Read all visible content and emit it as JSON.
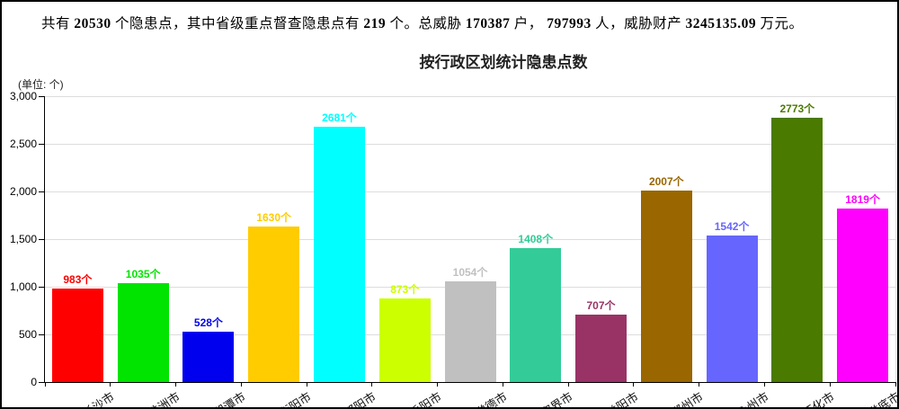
{
  "summary": {
    "segments": [
      {
        "t": "共有 ",
        "b": 0
      },
      {
        "t": "20530",
        "b": 1
      },
      {
        "t": " 个隐患点，其中省级重点督查隐患点有 ",
        "b": 0
      },
      {
        "t": "219",
        "b": 1
      },
      {
        "t": " 个。总威胁 ",
        "b": 0
      },
      {
        "t": "170387",
        "b": 1
      },
      {
        "t": " 户， ",
        "b": 0
      },
      {
        "t": "797993",
        "b": 1
      },
      {
        "t": " 人，威胁财产 ",
        "b": 0
      },
      {
        "t": "3245135.09",
        "b": 1
      },
      {
        "t": " 万元。",
        "b": 0
      }
    ]
  },
  "chart_data": {
    "type": "bar",
    "title": "按行政区划统计隐患点数",
    "unit_label": "(单位: 个)",
    "value_suffix": "个",
    "categories": [
      "长沙市",
      "株洲市",
      "湘潭市",
      "衡阳市",
      "邵阳市",
      "岳阳市",
      "常德市",
      "张家界市",
      "益阳市",
      "郴州市",
      "永州市",
      "怀化市",
      "娄底市"
    ],
    "values": [
      983,
      1035,
      528,
      1630,
      2681,
      873,
      1054,
      1408,
      707,
      2007,
      1542,
      2773,
      1819
    ],
    "bar_colors": [
      "#ff0000",
      "#00e400",
      "#0000ee",
      "#ffcc00",
      "#00ffff",
      "#ccff00",
      "#c0c0c0",
      "#33cc99",
      "#993366",
      "#996600",
      "#6666ff",
      "#4a7a00",
      "#ff00ff"
    ],
    "ylim": [
      0,
      3000
    ],
    "ytick_labels": [
      "0",
      "500",
      "1,000",
      "1,500",
      "2,000",
      "2,500",
      "3,000"
    ],
    "grid": true,
    "legend_position": "none",
    "xlabel": "",
    "ylabel": ""
  },
  "colors": {
    "axis": "#000000",
    "gridline": "#dddddd",
    "title_text": "#222222",
    "body_text": "#000000"
  }
}
